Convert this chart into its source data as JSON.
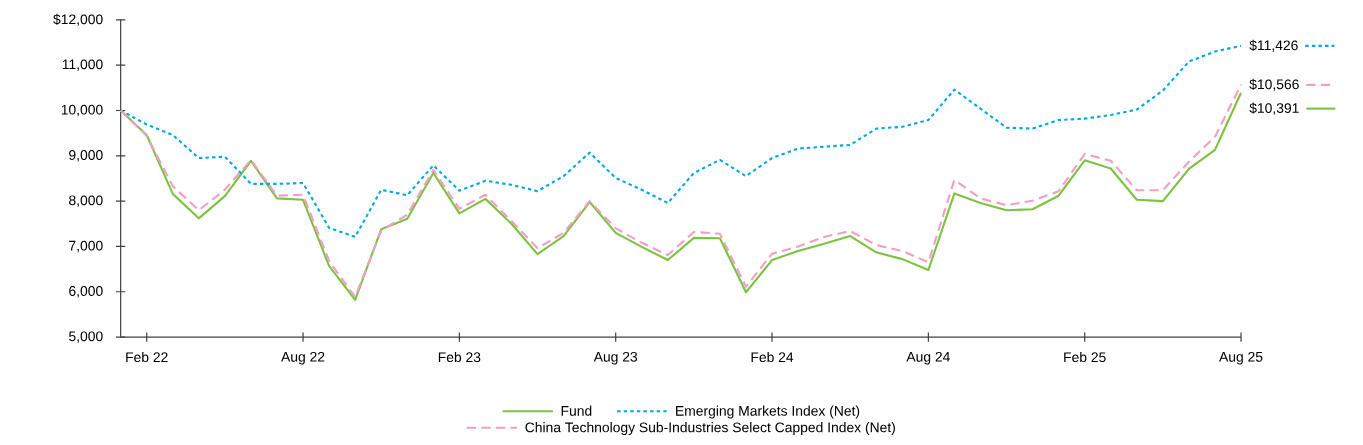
{
  "chart_data": {
    "type": "line",
    "x": [
      "2022-01",
      "2022-02",
      "2022-03",
      "2022-04",
      "2022-05",
      "2022-06",
      "2022-07",
      "2022-08",
      "2022-09",
      "2022-10",
      "2022-11",
      "2022-12",
      "2023-01",
      "2023-02",
      "2023-03",
      "2023-04",
      "2023-05",
      "2023-06",
      "2023-07",
      "2023-08",
      "2023-09",
      "2023-10",
      "2023-11",
      "2023-12",
      "2024-01",
      "2024-02",
      "2024-03",
      "2024-04",
      "2024-05",
      "2024-06",
      "2024-07",
      "2024-08",
      "2024-09",
      "2024-10",
      "2024-11",
      "2024-12",
      "2025-01",
      "2025-02",
      "2025-03",
      "2025-04",
      "2025-05",
      "2025-06",
      "2025-07",
      "2025-08"
    ],
    "series": [
      {
        "name": "Fund",
        "color": "#7dc242",
        "line_style": "solid",
        "values": [
          10000,
          9460,
          8160,
          7620,
          8110,
          8890,
          8060,
          8030,
          6570,
          5820,
          7380,
          7610,
          8620,
          7730,
          8050,
          7500,
          6830,
          7230,
          7980,
          7300,
          6990,
          6700,
          7190,
          7180,
          5990,
          6700,
          6900,
          7060,
          7230,
          6870,
          6720,
          6480,
          8170,
          7960,
          7800,
          7820,
          8120,
          8900,
          8720,
          8030,
          8000,
          8710,
          9130,
          10391
        ],
        "value_labels": [
          null,
          null,
          null,
          null,
          null,
          null,
          null,
          null,
          null,
          null,
          null,
          null,
          null,
          null,
          null,
          null,
          null,
          null,
          null,
          null,
          null,
          null,
          null,
          null,
          null,
          null,
          null,
          null,
          null,
          null,
          null,
          null,
          null,
          null,
          null,
          null,
          null,
          null,
          null,
          null,
          null,
          null,
          null,
          "$10,391"
        ]
      },
      {
        "name": "Emerging Markets Index (Net)",
        "color": "#00a9e0",
        "line_style": "dotted",
        "values": [
          10000,
          9690,
          9460,
          8950,
          8980,
          8380,
          8380,
          8400,
          7410,
          7210,
          8250,
          8130,
          8790,
          8230,
          8450,
          8360,
          8220,
          8550,
          9070,
          8510,
          8250,
          7960,
          8620,
          8910,
          8550,
          8950,
          9160,
          9200,
          9240,
          9600,
          9640,
          9790,
          10460,
          10040,
          9620,
          9600,
          9790,
          9820,
          9900,
          10020,
          10440,
          11080,
          11300,
          11426
        ],
        "value_labels": [
          null,
          null,
          null,
          null,
          null,
          null,
          null,
          null,
          null,
          null,
          null,
          null,
          null,
          null,
          null,
          null,
          null,
          null,
          null,
          null,
          null,
          null,
          null,
          null,
          null,
          null,
          null,
          null,
          null,
          null,
          null,
          null,
          null,
          null,
          null,
          null,
          null,
          null,
          null,
          null,
          null,
          null,
          null,
          "$11,426"
        ]
      },
      {
        "name": "China Technology Sub-Industries Select Capped Index (Net)",
        "color": "#f29fc5",
        "line_style": "dashed",
        "values": [
          10000,
          9440,
          8330,
          7800,
          8250,
          8910,
          8120,
          8140,
          6680,
          5880,
          7350,
          7700,
          8690,
          7830,
          8140,
          7560,
          6960,
          7300,
          8000,
          7400,
          7080,
          6810,
          7320,
          7280,
          6110,
          6840,
          7000,
          7210,
          7340,
          7030,
          6900,
          6650,
          8470,
          8060,
          7910,
          8010,
          8220,
          9040,
          8890,
          8240,
          8240,
          8870,
          9420,
          10566
        ],
        "value_labels": [
          null,
          null,
          null,
          null,
          null,
          null,
          null,
          null,
          null,
          null,
          null,
          null,
          null,
          null,
          null,
          null,
          null,
          null,
          null,
          null,
          null,
          null,
          null,
          null,
          null,
          null,
          null,
          null,
          null,
          null,
          null,
          null,
          null,
          null,
          null,
          null,
          null,
          null,
          null,
          null,
          null,
          null,
          null,
          "$10,566"
        ]
      }
    ],
    "xlim": [
      "2022-01",
      "2025-08"
    ],
    "xticks": [
      {
        "value": "2022-02",
        "label": "Feb 22"
      },
      {
        "value": "2022-08",
        "label": "Aug 22"
      },
      {
        "value": "2023-02",
        "label": "Feb 23"
      },
      {
        "value": "2023-08",
        "label": "Aug 23"
      },
      {
        "value": "2024-02",
        "label": "Feb 24"
      },
      {
        "value": "2024-08",
        "label": "Aug 24"
      },
      {
        "value": "2025-02",
        "label": "Feb 25"
      },
      {
        "value": "2025-08",
        "label": "Aug 25"
      }
    ],
    "ylim": [
      5000,
      12000
    ],
    "yticks": [
      {
        "value": 5000,
        "label": "5,000"
      },
      {
        "value": 6000,
        "label": "6,000"
      },
      {
        "value": 7000,
        "label": "7,000"
      },
      {
        "value": 8000,
        "label": "8,000"
      },
      {
        "value": 9000,
        "label": "9,000"
      },
      {
        "value": 10000,
        "label": "10,000"
      },
      {
        "value": 11000,
        "label": "11,000"
      },
      {
        "value": 12000,
        "label": "$12,000"
      }
    ],
    "legend": "bottom",
    "marker": "none"
  }
}
